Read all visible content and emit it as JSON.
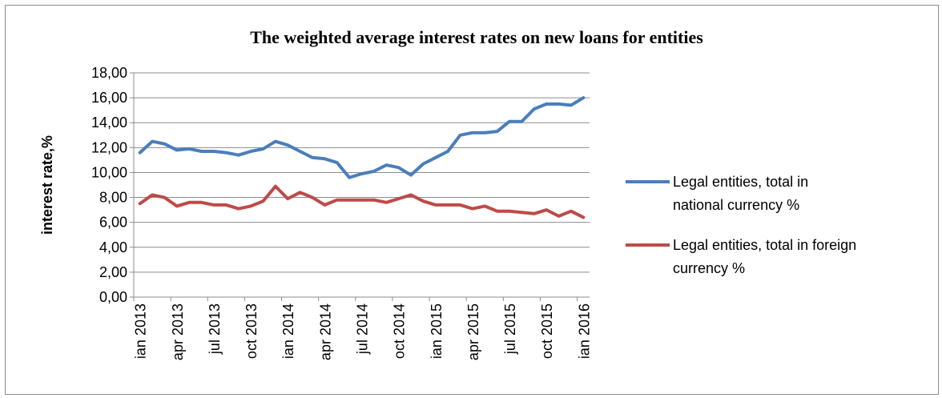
{
  "chart_data": {
    "type": "line",
    "title": "The weighted average interest rates on new loans for entities",
    "xlabel": "",
    "ylabel": "interest rate,%",
    "ylim": [
      0,
      18
    ],
    "yticks": [
      "0,00",
      "2,00",
      "4,00",
      "6,00",
      "8,00",
      "10,00",
      "12,00",
      "14,00",
      "16,00",
      "18,00"
    ],
    "x": [
      "ian 2013",
      "feb 2013",
      "mar 2013",
      "apr 2013",
      "mai 2013",
      "iun 2013",
      "jul 2013",
      "aug 2013",
      "sep 2013",
      "oct 2013",
      "nov 2013",
      "dec 2013",
      "ian 2014",
      "feb 2014",
      "mar 2014",
      "apr 2014",
      "mai 2014",
      "iun 2014",
      "jul 2014",
      "aug 2014",
      "sep 2014",
      "oct 2014",
      "nov 2014",
      "dec 2014",
      "ian 2015",
      "feb 2015",
      "mar 2015",
      "apr 2015",
      "mai 2015",
      "iun 2015",
      "jul 2015",
      "aug 2015",
      "sep 2015",
      "oct 2015",
      "nov 2015",
      "dec 2015",
      "ian 2016"
    ],
    "xtick_labels": [
      "ian 2013",
      "apr 2013",
      "jul 2013",
      "oct 2013",
      "ian 2014",
      "apr 2014",
      "jul 2014",
      "oct 2014",
      "ian 2015",
      "apr 2015",
      "jul 2015",
      "oct 2015",
      "ian 2016"
    ],
    "grid": true,
    "legend_position": "right",
    "series": [
      {
        "name": "Legal entities, total in national currency  %",
        "color": "#4a7ebb",
        "values": [
          11.6,
          12.5,
          12.3,
          11.8,
          11.9,
          11.7,
          11.7,
          11.6,
          11.4,
          11.7,
          11.9,
          12.5,
          12.2,
          11.7,
          11.2,
          11.1,
          10.8,
          9.6,
          9.9,
          10.1,
          10.6,
          10.4,
          9.8,
          10.7,
          11.2,
          11.7,
          13.0,
          13.2,
          13.2,
          13.3,
          14.1,
          14.1,
          15.1,
          15.5,
          15.5,
          15.4,
          16.0
        ]
      },
      {
        "name": "Legal entities, total in foreign currency  %",
        "color": "#be4b48",
        "values": [
          7.5,
          8.2,
          8.0,
          7.3,
          7.6,
          7.6,
          7.4,
          7.4,
          7.1,
          7.3,
          7.7,
          8.9,
          7.9,
          8.4,
          8.0,
          7.4,
          7.8,
          7.8,
          7.8,
          7.8,
          7.6,
          7.9,
          8.2,
          7.7,
          7.4,
          7.4,
          7.4,
          7.1,
          7.3,
          6.9,
          6.9,
          6.8,
          6.7,
          7.0,
          6.5,
          6.9,
          6.4
        ]
      }
    ]
  }
}
